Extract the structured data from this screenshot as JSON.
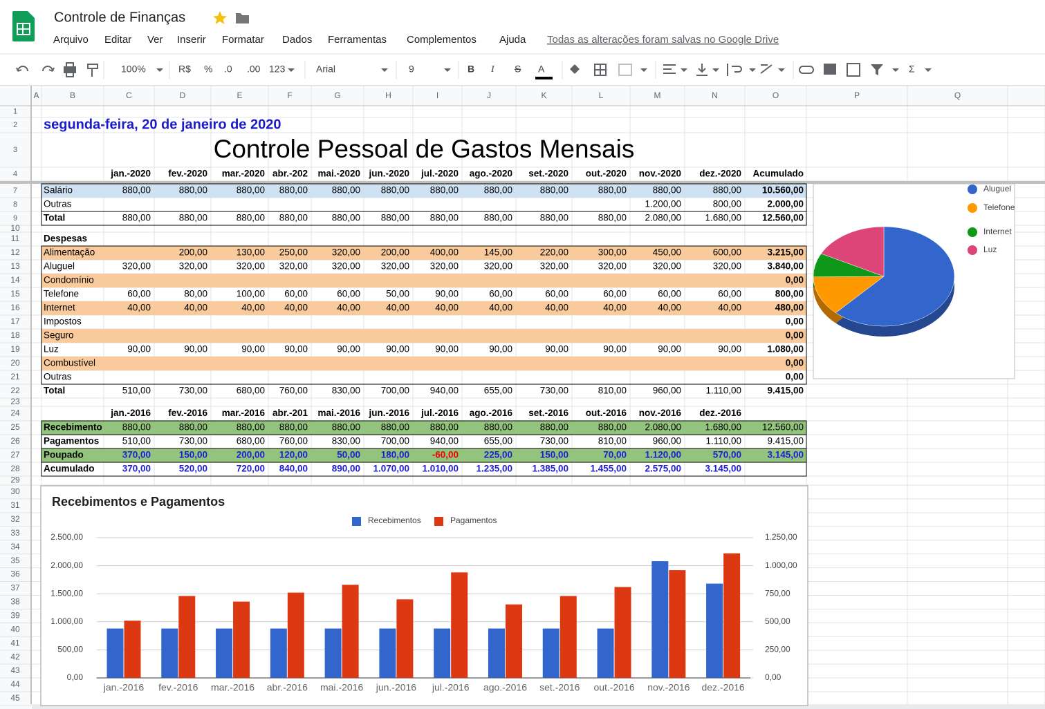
{
  "header": {
    "title": "Controle de Finanças",
    "menu": [
      "Arquivo",
      "Editar",
      "Ver",
      "Inserir",
      "Formatar",
      "Dados",
      "Ferramentas",
      "Complementos",
      "Ajuda"
    ],
    "save_status": "Todas as alterações foram salvas no Google Drive"
  },
  "toolbar": {
    "zoom": "100%",
    "currency": "R$",
    "percent": "%",
    "decrease_decimals": ".0",
    "increase_decimals": ".00",
    "more_formats": "123",
    "font": "Arial",
    "font_size": "9",
    "format_buttons": [
      "B",
      "I",
      "S",
      "A"
    ],
    "functions": "Σ"
  },
  "columns": [
    "A",
    "B",
    "C",
    "D",
    "E",
    "F",
    "G",
    "H",
    "I",
    "J",
    "K",
    "L",
    "M",
    "N",
    "O",
    "P",
    "Q"
  ],
  "row_numbers": [
    1,
    2,
    3,
    4,
    7,
    8,
    9,
    10,
    11,
    12,
    13,
    14,
    15,
    16,
    17,
    18,
    19,
    20,
    21,
    22,
    23,
    24,
    25,
    26,
    27,
    28,
    29,
    30,
    31,
    32,
    33,
    34,
    35,
    36,
    37,
    38,
    39,
    40,
    41,
    42,
    43,
    44,
    45
  ],
  "sheet": {
    "date": "segunda-feira, 20 de janeiro de 2020",
    "title": "Controle Pessoal de Gastos Mensais",
    "months_2020": [
      "jan.-2020",
      "fev.-2020",
      "mar.-2020",
      "abr.-202",
      "mai.-2020",
      "jun.-2020",
      "jul.-2020",
      "ago.-2020",
      "set.-2020",
      "out.-2020",
      "nov.-2020",
      "dez.-2020"
    ],
    "total_header": "Acumulado",
    "income": [
      {
        "label": "Salário",
        "values": [
          "880,00",
          "880,00",
          "880,00",
          "880,00",
          "880,00",
          "880,00",
          "880,00",
          "880,00",
          "880,00",
          "880,00",
          "880,00",
          "880,00"
        ],
        "total": "10.560,00"
      },
      {
        "label": "Outras",
        "values": [
          null,
          null,
          null,
          null,
          null,
          null,
          null,
          null,
          null,
          null,
          "1.200,00",
          "800,00"
        ],
        "total": "2.000,00"
      },
      {
        "label": "Total",
        "values": [
          "880,00",
          "880,00",
          "880,00",
          "880,00",
          "880,00",
          "880,00",
          "880,00",
          "880,00",
          "880,00",
          "880,00",
          "2.080,00",
          "1.680,00"
        ],
        "total": "12.560,00"
      }
    ],
    "expenses_title": "Despesas",
    "expenses": [
      {
        "label": "Alimentação",
        "values": [
          null,
          "200,00",
          "130,00",
          "250,00",
          "320,00",
          "200,00",
          "400,00",
          "145,00",
          "220,00",
          "300,00",
          "450,00",
          "600,00"
        ],
        "total": "3.215,00"
      },
      {
        "label": "Aluguel",
        "values": [
          "320,00",
          "320,00",
          "320,00",
          "320,00",
          "320,00",
          "320,00",
          "320,00",
          "320,00",
          "320,00",
          "320,00",
          "320,00",
          "320,00"
        ],
        "total": "3.840,00"
      },
      {
        "label": "Condomínio",
        "values": [
          null,
          null,
          null,
          null,
          null,
          null,
          null,
          null,
          null,
          null,
          null,
          null
        ],
        "total": "0,00"
      },
      {
        "label": "Telefone",
        "values": [
          "60,00",
          "80,00",
          "100,00",
          "60,00",
          "60,00",
          "50,00",
          "90,00",
          "60,00",
          "60,00",
          "60,00",
          "60,00",
          "60,00"
        ],
        "total": "800,00"
      },
      {
        "label": "Internet",
        "values": [
          "40,00",
          "40,00",
          "40,00",
          "40,00",
          "40,00",
          "40,00",
          "40,00",
          "40,00",
          "40,00",
          "40,00",
          "40,00",
          "40,00"
        ],
        "total": "480,00"
      },
      {
        "label": "Impostos",
        "values": [
          null,
          null,
          null,
          null,
          null,
          null,
          null,
          null,
          null,
          null,
          null,
          null
        ],
        "total": "0,00"
      },
      {
        "label": "Seguro",
        "values": [
          null,
          null,
          null,
          null,
          null,
          null,
          null,
          null,
          null,
          null,
          null,
          null
        ],
        "total": "0,00"
      },
      {
        "label": "Luz",
        "values": [
          "90,00",
          "90,00",
          "90,00",
          "90,00",
          "90,00",
          "90,00",
          "90,00",
          "90,00",
          "90,00",
          "90,00",
          "90,00",
          "90,00"
        ],
        "total": "1.080,00"
      },
      {
        "label": "Combustível",
        "values": [
          null,
          null,
          null,
          null,
          null,
          null,
          null,
          null,
          null,
          null,
          null,
          null
        ],
        "total": "0,00"
      },
      {
        "label": "Outras",
        "values": [
          null,
          null,
          null,
          null,
          null,
          null,
          null,
          null,
          null,
          null,
          null,
          null
        ],
        "total": "0,00"
      },
      {
        "label": "Total",
        "values": [
          "510,00",
          "730,00",
          "680,00",
          "760,00",
          "830,00",
          "700,00",
          "940,00",
          "655,00",
          "730,00",
          "810,00",
          "960,00",
          "1.110,00"
        ],
        "total": "9.415,00"
      }
    ],
    "months_2016": [
      "jan.-2016",
      "fev.-2016",
      "mar.-2016",
      "abr.-201",
      "mai.-2016",
      "jun.-2016",
      "jul.-2016",
      "ago.-2016",
      "set.-2016",
      "out.-2016",
      "nov.-2016",
      "dez.-2016"
    ],
    "summary": [
      {
        "label": "Recebimento",
        "values": [
          "880,00",
          "880,00",
          "880,00",
          "880,00",
          "880,00",
          "880,00",
          "880,00",
          "880,00",
          "880,00",
          "880,00",
          "2.080,00",
          "1.680,00"
        ],
        "total": "12.560,00"
      },
      {
        "label": "Pagamentos",
        "values": [
          "510,00",
          "730,00",
          "680,00",
          "760,00",
          "830,00",
          "700,00",
          "940,00",
          "655,00",
          "730,00",
          "810,00",
          "960,00",
          "1.110,00"
        ],
        "total": "9.415,00"
      },
      {
        "label": "Poupado",
        "values": [
          "370,00",
          "150,00",
          "200,00",
          "120,00",
          "50,00",
          "180,00",
          "-60,00",
          "225,00",
          "150,00",
          "70,00",
          "1.120,00",
          "570,00"
        ],
        "total": "3.145,00"
      },
      {
        "label": "Acumulado",
        "values": [
          "370,00",
          "520,00",
          "720,00",
          "840,00",
          "890,00",
          "1.070,00",
          "1.010,00",
          "1.235,00",
          "1.385,00",
          "1.455,00",
          "2.575,00",
          "3.145,00"
        ],
        "total": null
      }
    ]
  },
  "chart_data": [
    {
      "type": "pie",
      "categories": [
        "Aluguel",
        "Telefone",
        "Internet",
        "Luz"
      ],
      "values": [
        3840,
        800,
        480,
        1080
      ],
      "colors": [
        "#3366cc",
        "#ff9900",
        "#109618",
        "#dd4477"
      ],
      "legend": "right"
    },
    {
      "type": "bar",
      "title": "Recebimentos e Pagamentos",
      "categories": [
        "jan.-2016",
        "fev.-2016",
        "mar.-2016",
        "abr.-2016",
        "mai.-2016",
        "jun.-2016",
        "jul.-2016",
        "ago.-2016",
        "set.-2016",
        "out.-2016",
        "nov.-2016",
        "dez.-2016"
      ],
      "series": [
        {
          "name": "Recebimentos",
          "color": "#3366cc",
          "values": [
            880,
            880,
            880,
            880,
            880,
            880,
            880,
            880,
            880,
            880,
            2080,
            1680
          ]
        },
        {
          "name": "Pagamentos",
          "color": "#dc3912",
          "axis": "y2",
          "values": [
            510,
            730,
            680,
            760,
            830,
            700,
            940,
            655,
            730,
            810,
            960,
            1110
          ]
        }
      ],
      "ylim": [
        0,
        2500
      ],
      "yticks": [
        {
          "value": 0,
          "label": "0,00"
        },
        {
          "value": 500,
          "label": "500,00"
        },
        {
          "value": 1000,
          "label": "1.000,00"
        },
        {
          "value": 1500,
          "label": "1.500,00"
        },
        {
          "value": 2000,
          "label": "2.000,00"
        },
        {
          "value": 2500,
          "label": "2.500,00"
        }
      ],
      "y2lim": [
        0,
        1250
      ],
      "y2ticks": [
        {
          "value": 0,
          "label": "0,00"
        },
        {
          "value": 250,
          "label": "250,00"
        },
        {
          "value": 500,
          "label": "500,00"
        },
        {
          "value": 750,
          "label": "750,00"
        },
        {
          "value": 1000,
          "label": "1.000,00"
        },
        {
          "value": 1250,
          "label": "1.250,00"
        }
      ],
      "grid": true,
      "legend": "top"
    }
  ]
}
